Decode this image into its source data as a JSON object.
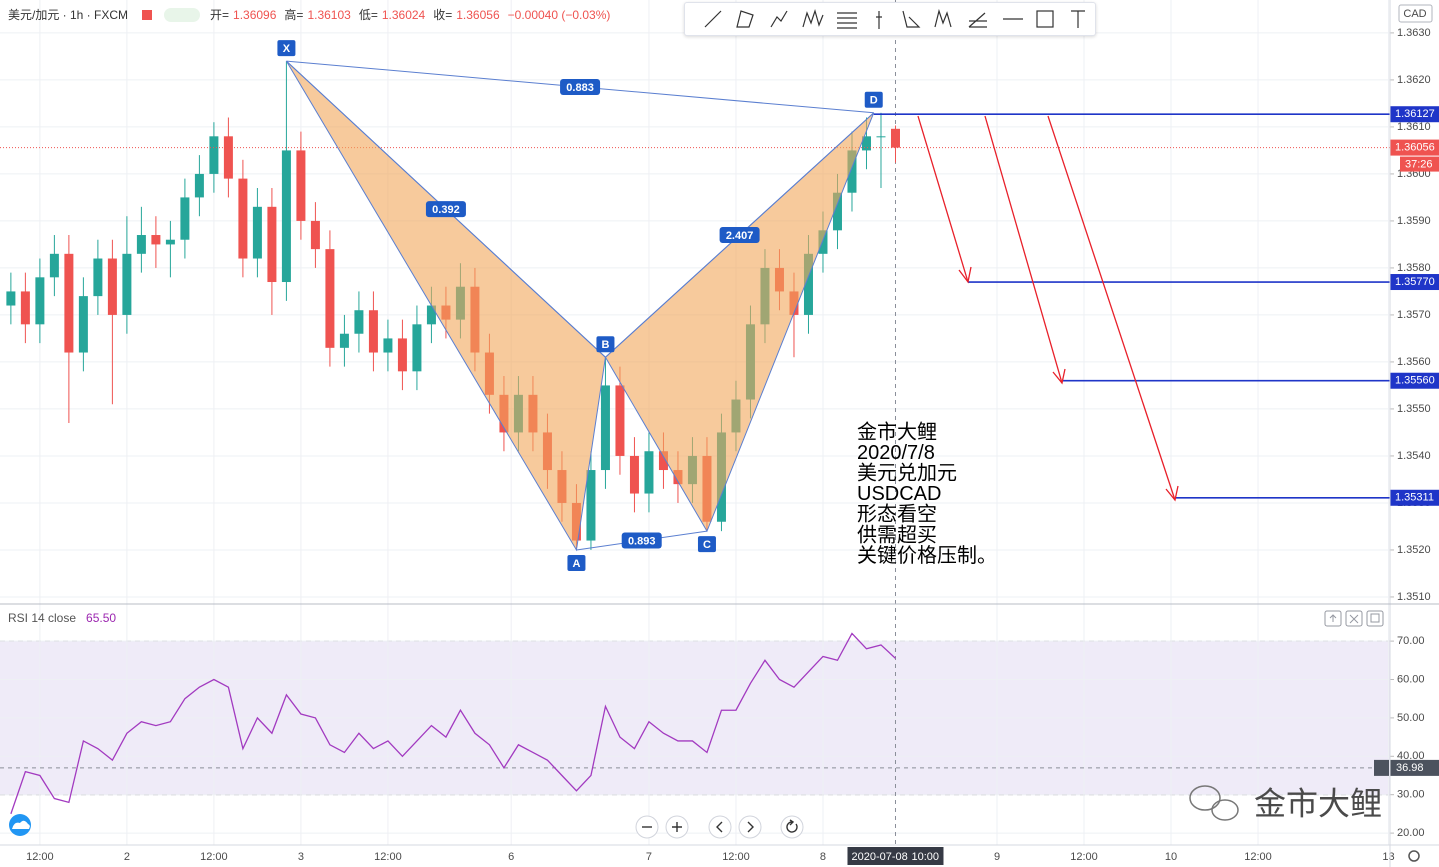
{
  "header": {
    "symbol": "美元/加元 · 1h · FXCM",
    "ohlc": [
      {
        "label": "开=",
        "value": 1.36096
      },
      {
        "label": "高=",
        "value": 1.36103
      },
      {
        "label": "低=",
        "value": 1.36024
      },
      {
        "label": "收=",
        "value": 1.36056
      }
    ],
    "change": "−0.00040 (−0.03%)"
  },
  "currency": "CAD",
  "watermark": "金市大鲤",
  "chart_data": [
    {
      "type": "candlestick",
      "x": [
        -4,
        -2,
        0,
        2,
        4,
        6,
        8,
        10,
        12,
        14,
        16,
        18,
        20,
        22,
        24,
        26,
        28,
        30,
        32,
        34,
        36,
        38,
        40,
        42,
        44,
        46,
        48,
        50,
        52,
        54,
        56,
        58,
        60,
        62,
        64,
        66,
        68,
        70,
        72,
        74,
        76,
        78,
        80,
        82,
        84,
        86,
        88,
        90,
        92,
        94,
        96,
        98,
        100,
        102,
        104,
        106,
        108,
        110,
        112,
        114,
        116,
        118
      ],
      "open": [
        1.3572,
        1.3575,
        1.3568,
        1.3578,
        1.3583,
        1.3562,
        1.3574,
        1.3582,
        1.357,
        1.3583,
        1.3587,
        1.3585,
        1.3586,
        1.3595,
        1.36,
        1.3608,
        1.3599,
        1.3582,
        1.3593,
        1.3577,
        1.3605,
        1.359,
        1.3584,
        1.3563,
        1.3566,
        1.3571,
        1.3562,
        1.3565,
        1.3558,
        1.3568,
        1.3572,
        1.3569,
        1.3576,
        1.3562,
        1.3553,
        1.3545,
        1.3553,
        1.3545,
        1.3537,
        1.353,
        1.3522,
        1.3537,
        1.3555,
        1.354,
        1.3532,
        1.3541,
        1.3537,
        1.3534,
        1.354,
        1.3526,
        1.3545,
        1.3552,
        1.3568,
        1.358,
        1.3575,
        1.357,
        1.3583,
        1.3588,
        1.3596,
        1.3605,
        1.3608,
        1.36096
      ],
      "high": [
        1.3579,
        1.3579,
        1.3582,
        1.3587,
        1.3587,
        1.3578,
        1.3586,
        1.3586,
        1.3591,
        1.3593,
        1.3591,
        1.359,
        1.3599,
        1.3604,
        1.3611,
        1.3612,
        1.3603,
        1.3597,
        1.3597,
        1.3624,
        1.3609,
        1.3594,
        1.3588,
        1.357,
        1.3575,
        1.3575,
        1.3569,
        1.3569,
        1.3572,
        1.3576,
        1.3576,
        1.3581,
        1.358,
        1.3566,
        1.3557,
        1.3557,
        1.3557,
        1.3549,
        1.3541,
        1.3534,
        1.3541,
        1.3561,
        1.3559,
        1.3544,
        1.3545,
        1.3545,
        1.3541,
        1.3544,
        1.3544,
        1.3549,
        1.3556,
        1.3572,
        1.3584,
        1.3584,
        1.3579,
        1.3587,
        1.3592,
        1.36,
        1.3609,
        1.3612,
        1.3613,
        1.36103
      ],
      "low": [
        1.3568,
        1.3564,
        1.3564,
        1.3574,
        1.3547,
        1.3558,
        1.357,
        1.3551,
        1.3566,
        1.3579,
        1.358,
        1.3578,
        1.3582,
        1.3591,
        1.3596,
        1.3595,
        1.3578,
        1.3578,
        1.357,
        1.3573,
        1.3586,
        1.358,
        1.3559,
        1.3559,
        1.3562,
        1.3558,
        1.3558,
        1.3554,
        1.3554,
        1.3564,
        1.3565,
        1.3565,
        1.3558,
        1.3549,
        1.3541,
        1.3541,
        1.3541,
        1.3533,
        1.3526,
        1.352,
        1.352,
        1.3533,
        1.3536,
        1.3528,
        1.3528,
        1.3533,
        1.353,
        1.353,
        1.3524,
        1.3524,
        1.3541,
        1.3548,
        1.3564,
        1.3571,
        1.3561,
        1.3566,
        1.3579,
        1.3584,
        1.3592,
        1.3601,
        1.3597,
        1.36024
      ],
      "close": [
        1.3575,
        1.3568,
        1.3578,
        1.3583,
        1.3562,
        1.3574,
        1.3582,
        1.357,
        1.3583,
        1.3587,
        1.3585,
        1.3586,
        1.3595,
        1.36,
        1.3608,
        1.3599,
        1.3582,
        1.3593,
        1.3577,
        1.3605,
        1.359,
        1.3584,
        1.3563,
        1.3566,
        1.3571,
        1.3562,
        1.3565,
        1.3558,
        1.3568,
        1.3572,
        1.3569,
        1.3576,
        1.3562,
        1.3553,
        1.3545,
        1.3553,
        1.3545,
        1.3537,
        1.353,
        1.3522,
        1.3537,
        1.3555,
        1.354,
        1.3532,
        1.3541,
        1.3537,
        1.3534,
        1.354,
        1.3526,
        1.3545,
        1.3552,
        1.3568,
        1.358,
        1.3575,
        1.357,
        1.3583,
        1.3588,
        1.3596,
        1.3605,
        1.3608,
        1.3608,
        1.36056
      ],
      "up_color": "#26a69a",
      "down_color": "#ef5350",
      "xlim": [
        -5.5,
        186.2
      ],
      "ylim": [
        1.35085,
        1.3637
      ],
      "yticks": [
        {
          "value": 1.351,
          "label": "1.3510"
        },
        {
          "value": 1.352,
          "label": "1.3520"
        },
        {
          "value": 1.353,
          "label": "1.3530"
        },
        {
          "value": 1.354,
          "label": "1.3540"
        },
        {
          "value": 1.355,
          "label": "1.3550"
        },
        {
          "value": 1.356,
          "label": "1.3560"
        },
        {
          "value": 1.357,
          "label": "1.3570"
        },
        {
          "value": 1.358,
          "label": "1.3580"
        },
        {
          "value": 1.359,
          "label": "1.3590"
        },
        {
          "value": 1.36,
          "label": "1.3600"
        },
        {
          "value": 1.361,
          "label": "1.3610"
        },
        {
          "value": 1.362,
          "label": "1.3620"
        },
        {
          "value": 1.363,
          "label": "1.3630"
        }
      ],
      "xticks": [
        {
          "value": 0,
          "label": "12:00"
        },
        {
          "value": 12,
          "label": "2"
        },
        {
          "value": 24,
          "label": "12:00"
        },
        {
          "value": 36,
          "label": "3"
        },
        {
          "value": 48,
          "label": "12:00"
        },
        {
          "value": 65,
          "label": "6"
        },
        {
          "value": 84,
          "label": "7"
        },
        {
          "value": 96,
          "label": "12:00"
        },
        {
          "value": 108,
          "label": "8"
        },
        {
          "value": 132,
          "label": "9"
        },
        {
          "value": 144,
          "label": "12:00"
        },
        {
          "value": 156,
          "label": "10"
        },
        {
          "value": 168,
          "label": "12:00"
        },
        {
          "value": 186,
          "label": "13"
        }
      ],
      "grid": true,
      "last_price": 1.36056,
      "countdown": "37:26",
      "crosshair": {
        "x": 118,
        "date": "2020-07-08",
        "time": "10:00"
      },
      "pattern": {
        "fill": "#f2a65a",
        "line_color": "#5b7fd0",
        "points": [
          {
            "label": "X",
            "x": 34,
            "price": 1.3624
          },
          {
            "label": "A",
            "x": 74,
            "price": 1.352
          },
          {
            "label": "B",
            "x": 78,
            "price": 1.3561
          },
          {
            "label": "C",
            "x": 92,
            "price": 1.3524
          },
          {
            "label": "D",
            "x": 115,
            "price": 1.3613
          }
        ],
        "legs": [
          {
            "from": "X",
            "to": "D",
            "label": 0.883
          },
          {
            "from": "X",
            "to": "B",
            "label": 0.392
          },
          {
            "from": "A",
            "to": "C",
            "label": 0.893
          },
          {
            "from": "B",
            "to": "D",
            "label": 2.407
          }
        ]
      },
      "level_color": "#1f35c8",
      "levels": [
        {
          "price": 1.36127,
          "start": 115
        },
        {
          "price": 1.3577,
          "label": "1.35770",
          "start": 128
        },
        {
          "price": 1.3556,
          "label": "1.35560",
          "start": 141
        },
        {
          "price": 1.35311,
          "start": 156.6
        }
      ],
      "annotation": [
        "金市大鲤",
        "2020/7/8",
        "美元兑加元",
        "USDCAD",
        "形态看空",
        "供需超买",
        "关键价格压制。"
      ]
    },
    {
      "type": "line",
      "title": "RSI 14 close",
      "color": "#a23ac0",
      "x": [
        -4,
        -2,
        0,
        2,
        4,
        6,
        8,
        10,
        12,
        14,
        16,
        18,
        20,
        22,
        24,
        26,
        28,
        30,
        32,
        34,
        36,
        38,
        40,
        42,
        44,
        46,
        48,
        50,
        52,
        54,
        56,
        58,
        60,
        62,
        64,
        66,
        68,
        70,
        72,
        74,
        76,
        78,
        80,
        82,
        84,
        86,
        88,
        90,
        92,
        94,
        96,
        98,
        100,
        102,
        104,
        106,
        108,
        110,
        112,
        114,
        116,
        118
      ],
      "values": [
        25,
        36,
        35,
        29,
        28,
        44,
        42,
        39,
        46,
        49,
        48,
        49,
        55,
        58,
        60,
        58,
        42,
        50,
        46,
        56,
        51,
        50,
        43,
        41,
        46,
        42,
        44,
        40,
        44,
        48,
        45,
        52,
        46,
        43,
        37,
        43,
        41,
        39,
        35,
        31,
        35,
        53,
        45,
        42,
        49,
        46,
        44,
        44,
        41,
        52,
        52,
        59,
        65,
        60,
        58,
        62,
        66,
        65,
        72,
        68,
        69,
        65.5
      ],
      "last_value": {
        "value": 65.5,
        "label": "65.50"
      },
      "ylim": [
        16.9,
        79.4
      ],
      "yticks": [
        {
          "value": 20,
          "label": "20.00"
        },
        {
          "value": 30,
          "label": "30.00"
        },
        {
          "value": 40,
          "label": "40.00"
        },
        {
          "value": 50,
          "label": "50.00"
        },
        {
          "value": 60,
          "label": "60.00"
        },
        {
          "value": 70,
          "label": "70.00"
        }
      ],
      "bands": [
        30,
        70
      ],
      "band_color": "#7e57c2",
      "crosshair_value": 36.98
    }
  ]
}
